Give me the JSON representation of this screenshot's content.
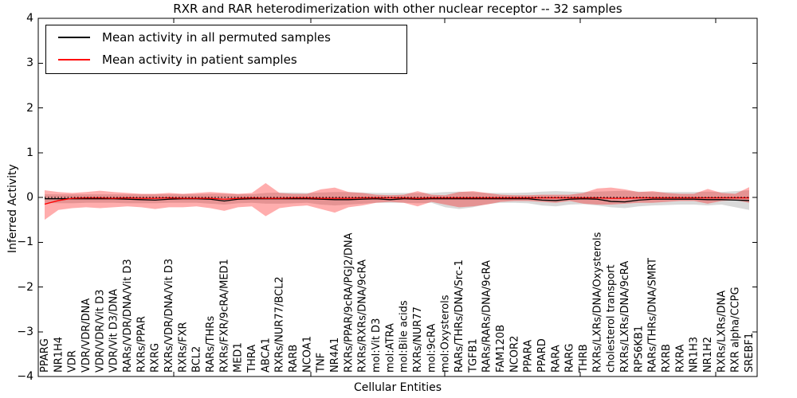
{
  "figure": {
    "title": "RXR and RAR heterodimerization with other nuclear receptor -- 32 samples",
    "xlabel": "Cellular Entities",
    "ylabel": "Inferred Activity"
  },
  "legend": {
    "items": [
      {
        "label": "Mean activity in all permuted samples",
        "color": "#000000"
      },
      {
        "label": "Mean activity in patient samples",
        "color": "#ff0000"
      }
    ]
  },
  "axes": {
    "ytick_labels": [
      "4",
      "3",
      "2",
      "1",
      "0",
      "−1",
      "−2",
      "−3",
      "−4"
    ]
  },
  "chart_data": {
    "type": "line",
    "title": "RXR and RAR heterodimerization with other nuclear receptor -- 32 samples",
    "xlabel": "Cellular Entities",
    "ylabel": "Inferred Activity",
    "ylim": [
      -4,
      4
    ],
    "yticks": [
      4,
      3,
      2,
      1,
      0,
      -1,
      -2,
      -3,
      -4
    ],
    "grid": false,
    "legend_position": "upper left",
    "zero_line": {
      "style": "dotted",
      "color": "#000000",
      "y": 0
    },
    "categories": [
      "PPARG",
      "NR1H4",
      "VDR",
      "VDR/VDR/DNA",
      "VDR/VDR/Vit D3",
      "VDR/Vit D3/DNA",
      "RARs/VDR/DNA/Vit D3",
      "RXRs/PPAR",
      "RXRG",
      "RXRs/VDR/DNA/Vit D3",
      "RXRs/FXR",
      "BCL2",
      "RARs/THRs",
      "RXRs/FXR/9cRA/MED1",
      "MED1",
      "THRA",
      "ABCA1",
      "RXRs/NUR77/BCL2",
      "RARB",
      "NCOA1",
      "TNF",
      "NR4A1",
      "RXRs/PPAR/9cRA/PGJ2/DNA",
      "RXRs/RXRs/DNA/9cRA",
      "mol:Vit D3",
      "mol:ATRA",
      "mol:Bile acids",
      "RXRs/NUR77",
      "mol:9cRA",
      "mol:Oxysterols",
      "RARs/THRs/DNA/Src-1",
      "TGFB1",
      "RARs/RARs/DNA/9cRA",
      "FAM120B",
      "NCOR2",
      "PPARA",
      "PPARD",
      "RARA",
      "RARG",
      "THRB",
      "RXRs/LXRs/DNA/Oxysterols",
      "cholesterol transport",
      "RXRs/LXRs/DNA/9cRA",
      "RPS6KB1",
      "RARs/THRs/DNA/SMRT",
      "RXRB",
      "RXRA",
      "NR1H3",
      "NR1H2",
      "RXRs/LXRs/DNA",
      "RXR alpha/CCPG",
      "SREBF1"
    ],
    "series": [
      {
        "name": "Mean activity in all permuted samples",
        "color": "#000000",
        "values": [
          -0.03,
          -0.03,
          -0.03,
          -0.03,
          -0.03,
          -0.03,
          -0.04,
          -0.05,
          -0.06,
          -0.04,
          -0.03,
          -0.03,
          -0.04,
          -0.08,
          -0.04,
          -0.03,
          -0.03,
          -0.03,
          -0.03,
          -0.03,
          -0.04,
          -0.05,
          -0.05,
          -0.04,
          -0.03,
          -0.05,
          -0.03,
          -0.04,
          -0.03,
          -0.03,
          -0.03,
          -0.03,
          -0.03,
          -0.03,
          -0.03,
          -0.03,
          -0.06,
          -0.07,
          -0.04,
          -0.03,
          -0.04,
          -0.09,
          -0.1,
          -0.06,
          -0.04,
          -0.04,
          -0.04,
          -0.04,
          -0.05,
          -0.05,
          -0.06,
          -0.07
        ]
      },
      {
        "name": "Mean activity in patient samples",
        "color": "#ff0000",
        "values": [
          -0.15,
          -0.07,
          -0.02,
          -0.01,
          -0.01,
          -0.02,
          -0.01,
          -0.02,
          -0.02,
          -0.01,
          -0.02,
          -0.02,
          -0.02,
          -0.04,
          -0.02,
          -0.01,
          -0.02,
          -0.02,
          -0.01,
          -0.01,
          -0.02,
          -0.02,
          -0.02,
          -0.01,
          -0.01,
          -0.01,
          -0.01,
          -0.02,
          -0.01,
          -0.01,
          -0.01,
          -0.01,
          -0.01,
          -0.01,
          -0.01,
          -0.01,
          -0.01,
          -0.01,
          -0.01,
          -0.01,
          -0.01,
          -0.02,
          -0.02,
          -0.01,
          -0.01,
          -0.01,
          -0.01,
          -0.01,
          -0.01,
          -0.01,
          -0.01,
          -0.01
        ]
      }
    ],
    "bands": [
      {
        "name": "Permuted samples activity range",
        "color": "#000000",
        "opacity": 0.15,
        "upper": [
          0.07,
          0.07,
          0.07,
          0.07,
          0.07,
          0.07,
          0.07,
          0.07,
          0.07,
          0.07,
          0.07,
          0.07,
          0.08,
          0.08,
          0.07,
          0.07,
          0.1,
          0.11,
          0.11,
          0.1,
          0.11,
          0.12,
          0.12,
          0.11,
          0.1,
          0.1,
          0.1,
          0.1,
          0.1,
          0.12,
          0.13,
          0.12,
          0.1,
          0.1,
          0.1,
          0.11,
          0.13,
          0.14,
          0.13,
          0.12,
          0.13,
          0.14,
          0.15,
          0.13,
          0.12,
          0.12,
          0.12,
          0.12,
          0.13,
          0.12,
          0.14,
          0.16
        ],
        "lower": [
          -0.12,
          -0.13,
          -0.13,
          -0.12,
          -0.12,
          -0.12,
          -0.13,
          -0.13,
          -0.13,
          -0.12,
          -0.12,
          -0.12,
          -0.14,
          -0.16,
          -0.13,
          -0.12,
          -0.14,
          -0.14,
          -0.13,
          -0.12,
          -0.16,
          -0.18,
          -0.16,
          -0.14,
          -0.12,
          -0.12,
          -0.12,
          -0.13,
          -0.12,
          -0.22,
          -0.26,
          -0.22,
          -0.15,
          -0.12,
          -0.12,
          -0.13,
          -0.18,
          -0.2,
          -0.16,
          -0.15,
          -0.18,
          -0.22,
          -0.24,
          -0.2,
          -0.18,
          -0.17,
          -0.16,
          -0.16,
          -0.18,
          -0.16,
          -0.22,
          -0.28
        ]
      },
      {
        "name": "Patient samples activity range",
        "color": "#ff0000",
        "opacity": 0.32,
        "upper": [
          0.16,
          0.12,
          0.1,
          0.12,
          0.15,
          0.12,
          0.1,
          0.08,
          0.08,
          0.1,
          0.08,
          0.1,
          0.12,
          0.1,
          0.08,
          0.1,
          0.32,
          0.1,
          0.08,
          0.08,
          0.18,
          0.22,
          0.12,
          0.1,
          0.06,
          0.05,
          0.06,
          0.14,
          0.06,
          0.05,
          0.12,
          0.14,
          0.1,
          0.06,
          0.05,
          0.05,
          0.06,
          0.06,
          0.06,
          0.1,
          0.2,
          0.22,
          0.18,
          0.12,
          0.14,
          0.1,
          0.08,
          0.08,
          0.19,
          0.1,
          0.08,
          0.23
        ],
        "lower": [
          -0.5,
          -0.28,
          -0.24,
          -0.22,
          -0.24,
          -0.22,
          -0.2,
          -0.22,
          -0.26,
          -0.22,
          -0.22,
          -0.2,
          -0.24,
          -0.3,
          -0.22,
          -0.2,
          -0.42,
          -0.24,
          -0.2,
          -0.18,
          -0.26,
          -0.34,
          -0.22,
          -0.18,
          -0.12,
          -0.1,
          -0.12,
          -0.2,
          -0.1,
          -0.16,
          -0.22,
          -0.2,
          -0.16,
          -0.1,
          -0.08,
          -0.08,
          -0.1,
          -0.12,
          -0.08,
          -0.14,
          -0.16,
          -0.16,
          -0.14,
          -0.12,
          -0.12,
          -0.1,
          -0.08,
          -0.08,
          -0.14,
          -0.08,
          -0.06,
          -0.12
        ]
      }
    ]
  }
}
